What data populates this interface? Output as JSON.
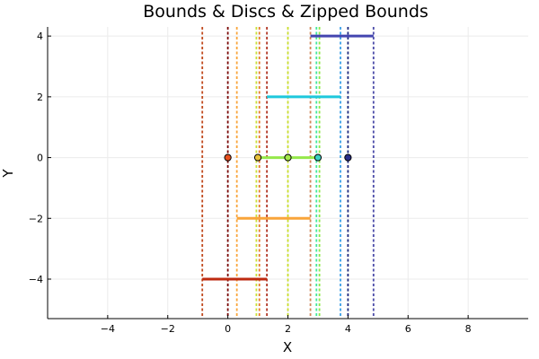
{
  "chart_data": {
    "type": "scatter",
    "title": "Bounds & Discs & Zipped Bounds",
    "xlabel": "X",
    "ylabel": "Y",
    "xlim": [
      -6,
      10
    ],
    "ylim": [
      -5.3,
      4.3
    ],
    "xticks": [
      -4,
      -2,
      0,
      2,
      4,
      6,
      8
    ],
    "yticks": [
      -4,
      -2,
      0,
      2,
      4
    ],
    "xtick_labels": [
      "−4",
      "−2",
      "0",
      "2",
      "4",
      "6",
      "8"
    ],
    "ytick_labels": [
      "−4",
      "−2",
      "0",
      "2",
      "4"
    ],
    "grid": true,
    "legend": "none",
    "vertical_lines": [
      {
        "x": -0.85,
        "color": "#c14a1e"
      },
      {
        "x": 0.0,
        "color": "#7a0403"
      },
      {
        "x": 0.3,
        "color": "#f9a53a"
      },
      {
        "x": 0.95,
        "color": "#c9e03a"
      },
      {
        "x": 1.05,
        "color": "#e8792a"
      },
      {
        "x": 1.3,
        "color": "#b33a2a"
      },
      {
        "x": 2.0,
        "color": "#c9de2a"
      },
      {
        "x": 2.75,
        "color": "#d2885a"
      },
      {
        "x": 2.95,
        "color": "#42e7a0"
      },
      {
        "x": 3.05,
        "color": "#8ee84a"
      },
      {
        "x": 3.75,
        "color": "#3b9fe8"
      },
      {
        "x": 4.0,
        "color": "#1e2a80"
      },
      {
        "x": 4.85,
        "color": "#4a4aa8"
      }
    ],
    "segments": [
      {
        "x1": -0.85,
        "x2": 1.3,
        "y": -4,
        "color": "#be2a10"
      },
      {
        "x1": 0.3,
        "x2": 2.75,
        "y": -2,
        "color": "#f9a53a"
      },
      {
        "x1": 1.05,
        "x2": 3.05,
        "y": 0,
        "color": "#95e84a"
      },
      {
        "x1": 1.3,
        "x2": 3.75,
        "y": 2,
        "color": "#1ec8dc"
      },
      {
        "x1": 2.75,
        "x2": 4.85,
        "y": 4,
        "color": "#4446b0"
      }
    ],
    "points": [
      {
        "x": 0,
        "y": 0,
        "color": "#e8501e"
      },
      {
        "x": 1,
        "y": 0,
        "color": "#e8c23a"
      },
      {
        "x": 2,
        "y": 0,
        "color": "#a4e84a"
      },
      {
        "x": 3,
        "y": 0,
        "color": "#3ad0c4"
      },
      {
        "x": 4,
        "y": 0,
        "color": "#2a2e8a"
      }
    ]
  }
}
